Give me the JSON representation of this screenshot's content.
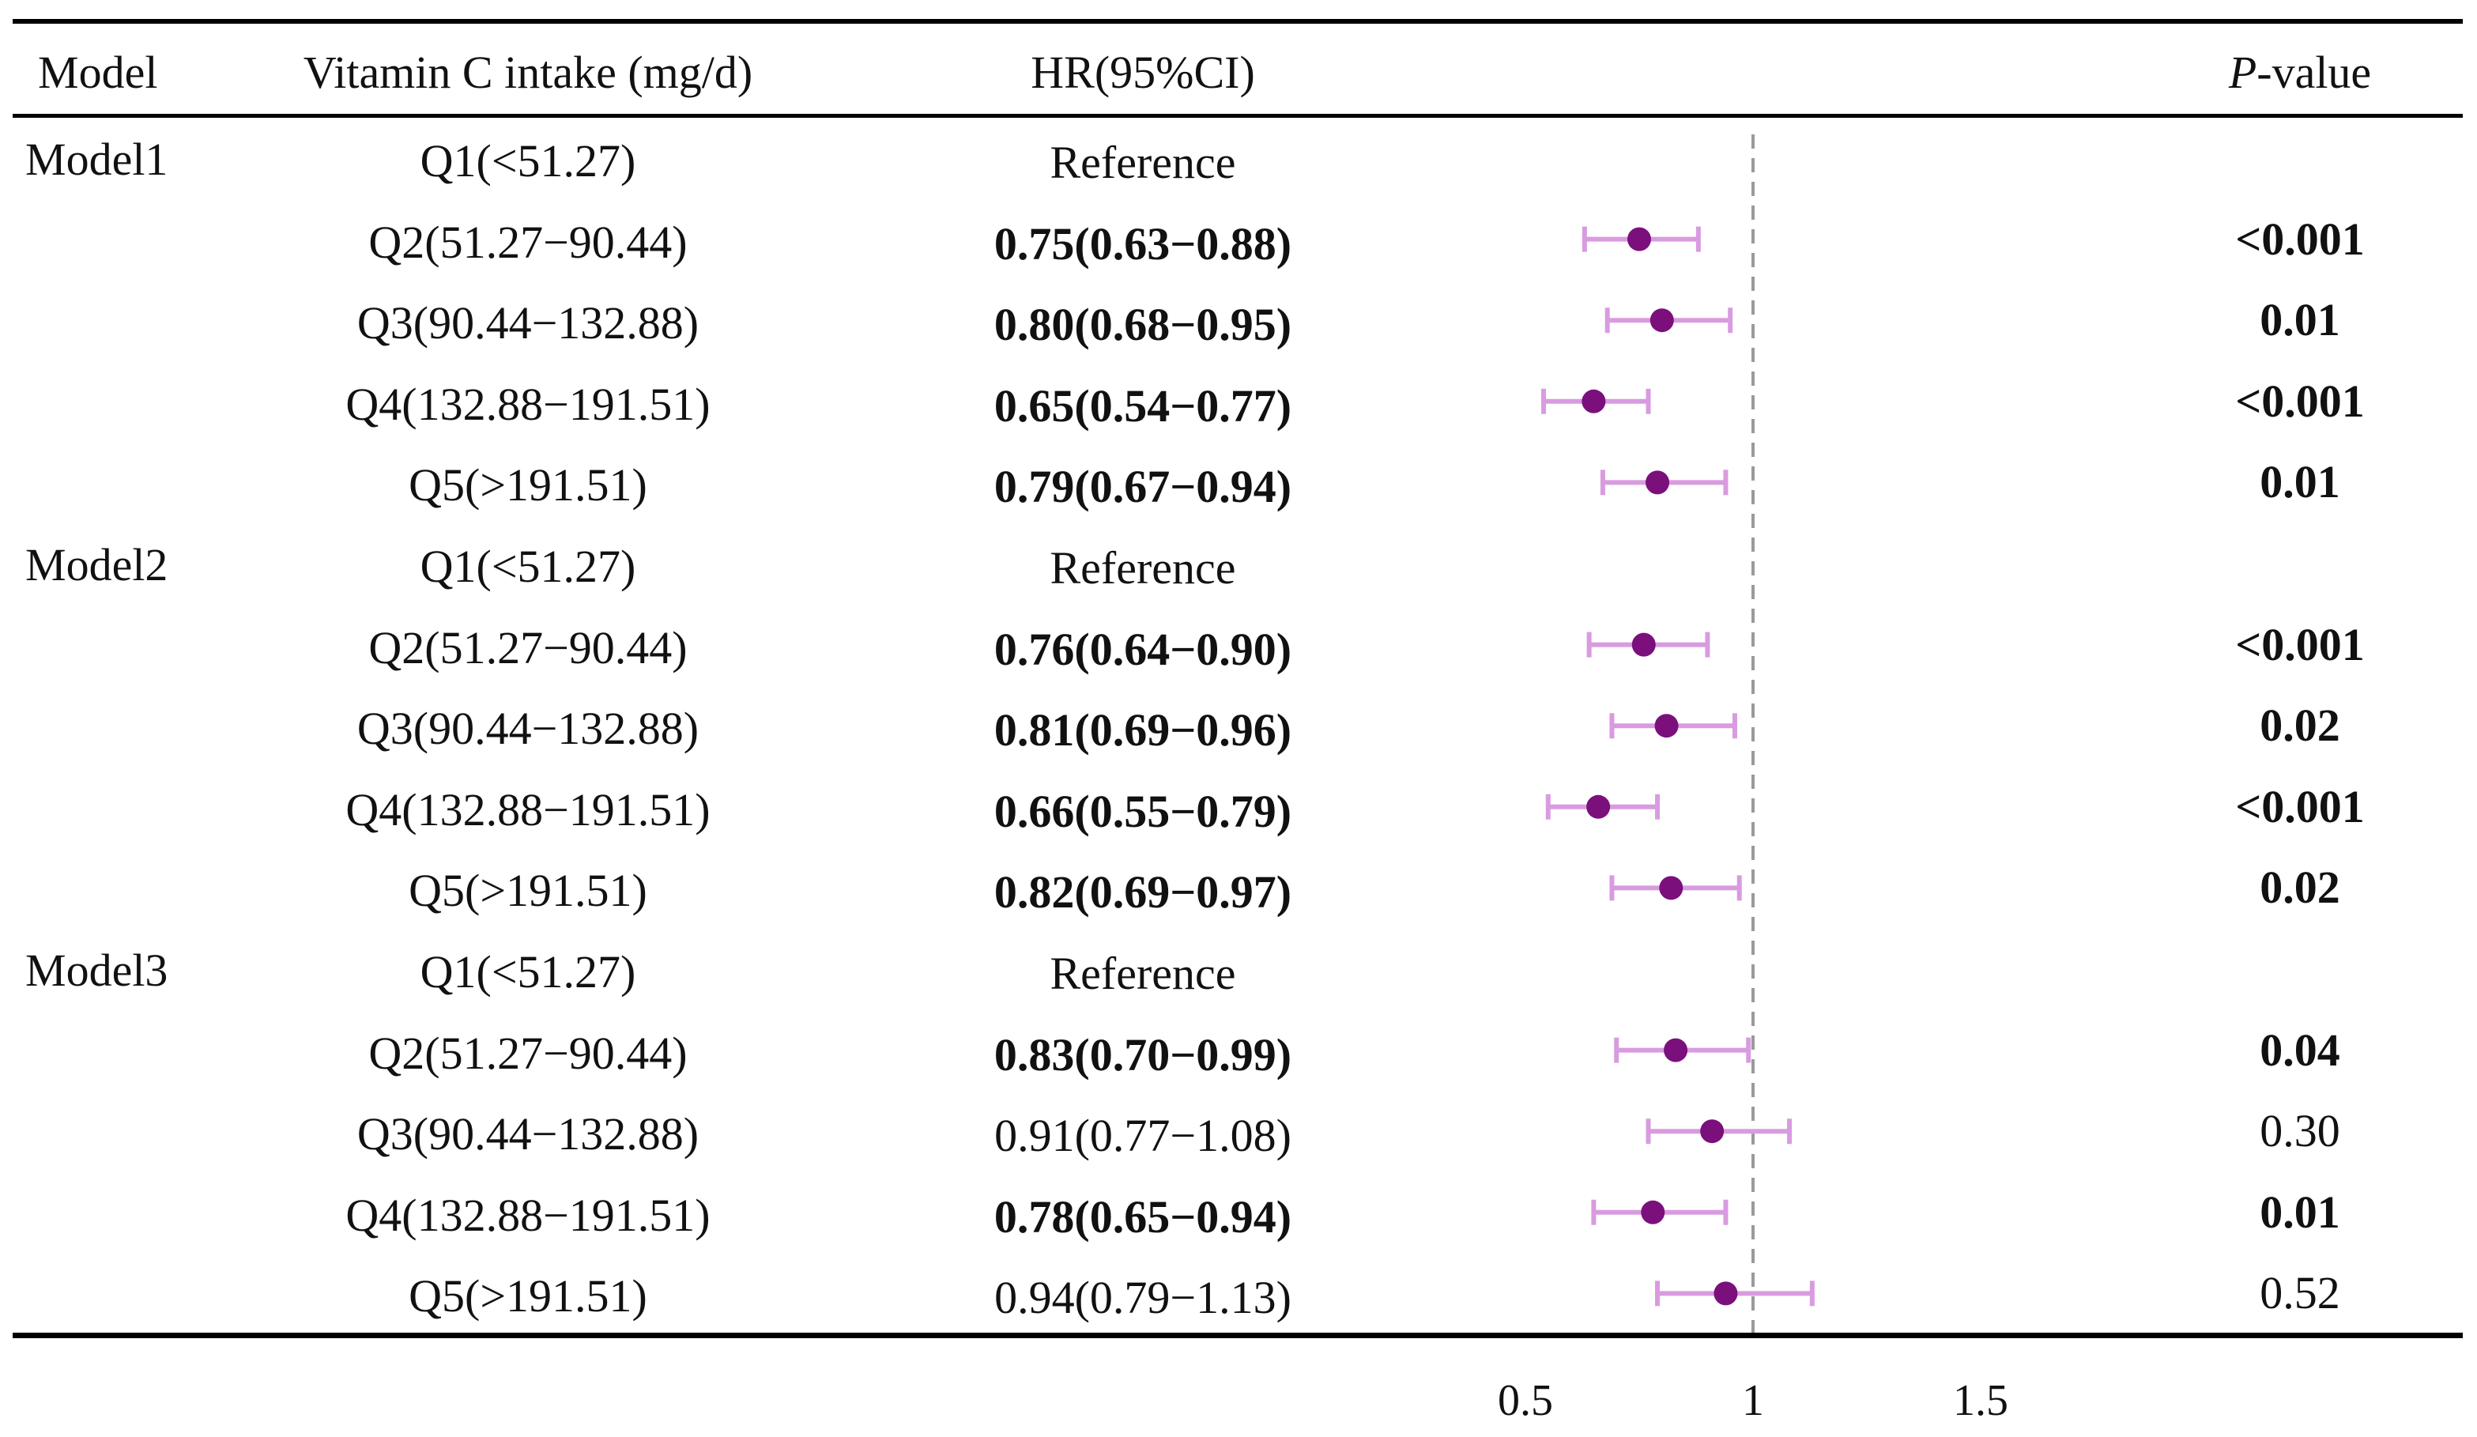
{
  "chart_data": {
    "type": "forest",
    "title": "",
    "xlabel": "",
    "xlim": [
      0.5,
      1.5
    ],
    "xticks": [
      "0.5",
      "1",
      "1.5"
    ],
    "reference_line": 1,
    "point_color": "#7b0f7c",
    "ci_color": "#d99be0",
    "headers": {
      "model": "Model",
      "intake": "Vitamin C intake (mg/d)",
      "hr": "HR(95%CI)",
      "p_italic": "P",
      "p_rest": "-value"
    },
    "rows": [
      {
        "model": "Model1",
        "quintile": "Q1(<51.27)",
        "hr_text": "Reference",
        "hr": null,
        "lo": null,
        "hi": null,
        "p": "",
        "bold": false
      },
      {
        "model": "",
        "quintile": "Q2(51.27−90.44)",
        "hr_text": "0.75(0.63−0.88)",
        "hr": 0.75,
        "lo": 0.63,
        "hi": 0.88,
        "p": "<0.001",
        "bold": true
      },
      {
        "model": "",
        "quintile": "Q3(90.44−132.88)",
        "hr_text": "0.80(0.68−0.95)",
        "hr": 0.8,
        "lo": 0.68,
        "hi": 0.95,
        "p": "0.01",
        "bold": true
      },
      {
        "model": "",
        "quintile": "Q4(132.88−191.51)",
        "hr_text": "0.65(0.54−0.77)",
        "hr": 0.65,
        "lo": 0.54,
        "hi": 0.77,
        "p": "<0.001",
        "bold": true
      },
      {
        "model": "",
        "quintile": "Q5(>191.51)",
        "hr_text": "0.79(0.67−0.94)",
        "hr": 0.79,
        "lo": 0.67,
        "hi": 0.94,
        "p": "0.01",
        "bold": true
      },
      {
        "model": "Model2",
        "quintile": "Q1(<51.27)",
        "hr_text": "Reference",
        "hr": null,
        "lo": null,
        "hi": null,
        "p": "",
        "bold": false
      },
      {
        "model": "",
        "quintile": "Q2(51.27−90.44)",
        "hr_text": "0.76(0.64−0.90)",
        "hr": 0.76,
        "lo": 0.64,
        "hi": 0.9,
        "p": "<0.001",
        "bold": true
      },
      {
        "model": "",
        "quintile": "Q3(90.44−132.88)",
        "hr_text": "0.81(0.69−0.96)",
        "hr": 0.81,
        "lo": 0.69,
        "hi": 0.96,
        "p": "0.02",
        "bold": true
      },
      {
        "model": "",
        "quintile": "Q4(132.88−191.51)",
        "hr_text": "0.66(0.55−0.79)",
        "hr": 0.66,
        "lo": 0.55,
        "hi": 0.79,
        "p": "<0.001",
        "bold": true
      },
      {
        "model": "",
        "quintile": "Q5(>191.51)",
        "hr_text": "0.82(0.69−0.97)",
        "hr": 0.82,
        "lo": 0.69,
        "hi": 0.97,
        "p": "0.02",
        "bold": true
      },
      {
        "model": "Model3",
        "quintile": "Q1(<51.27)",
        "hr_text": "Reference",
        "hr": null,
        "lo": null,
        "hi": null,
        "p": "",
        "bold": false
      },
      {
        "model": "",
        "quintile": "Q2(51.27−90.44)",
        "hr_text": "0.83(0.70−0.99)",
        "hr": 0.83,
        "lo": 0.7,
        "hi": 0.99,
        "p": "0.04",
        "bold": true
      },
      {
        "model": "",
        "quintile": "Q3(90.44−132.88)",
        "hr_text": "0.91(0.77−1.08)",
        "hr": 0.91,
        "lo": 0.77,
        "hi": 1.08,
        "p": "0.30",
        "bold": false
      },
      {
        "model": "",
        "quintile": "Q4(132.88−191.51)",
        "hr_text": "0.78(0.65−0.94)",
        "hr": 0.78,
        "lo": 0.65,
        "hi": 0.94,
        "p": "0.01",
        "bold": true
      },
      {
        "model": "",
        "quintile": "Q5(>191.51)",
        "hr_text": "0.94(0.79−1.13)",
        "hr": 0.94,
        "lo": 0.79,
        "hi": 1.13,
        "p": "0.52",
        "bold": false
      }
    ]
  }
}
